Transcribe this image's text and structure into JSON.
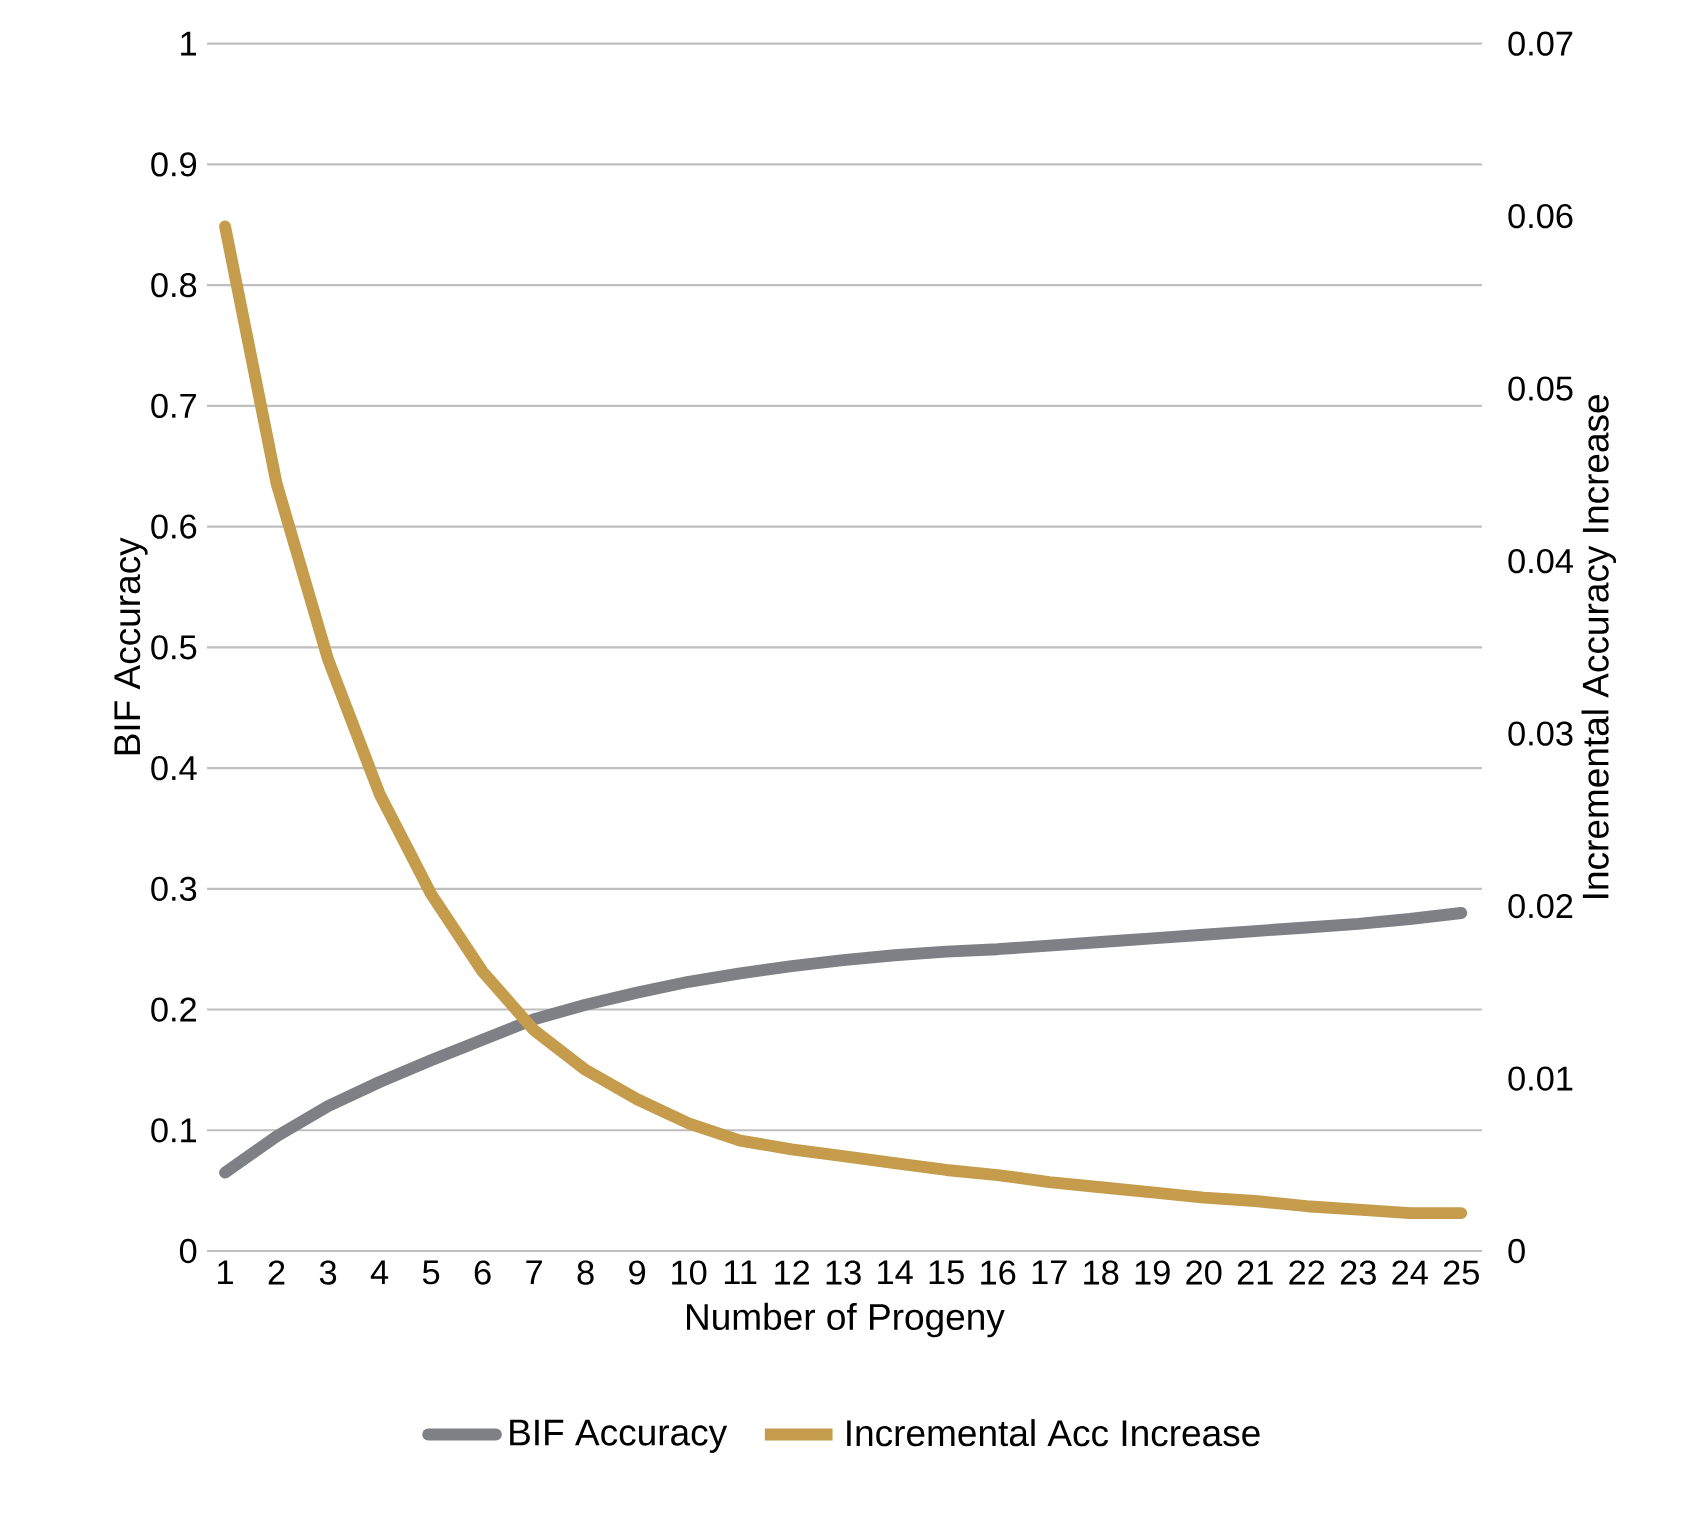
{
  "chart_data": {
    "type": "line",
    "xlabel": "Number of Progeny",
    "ylabel": "BIF Accuracy",
    "y2label": "Incremental Accuracy Increase",
    "categories": [
      "1",
      "2",
      "3",
      "4",
      "5",
      "6",
      "7",
      "8",
      "9",
      "10",
      "11",
      "12",
      "13",
      "14",
      "15",
      "16",
      "17",
      "18",
      "19",
      "20",
      "21",
      "22",
      "23",
      "24",
      "25"
    ],
    "series": [
      {
        "name": "BIF Accuracy",
        "color": "#7f8085",
        "values": [
          0.065,
          0.095,
          0.12,
          0.14,
          0.158,
          0.175,
          0.192,
          0.204,
          0.214,
          0.223,
          0.23,
          0.236,
          0.241,
          0.245,
          0.248,
          0.25,
          0.253,
          0.256,
          0.259,
          0.262,
          0.265,
          0.268,
          0.271,
          0.275,
          0.28
        ]
      },
      {
        "name": "Incremental Acc Increase",
        "color": "#c49c4c",
        "axis": "y2",
        "values": [
          0.0594,
          0.0445,
          0.0343,
          0.0265,
          0.0207,
          0.0162,
          0.0128,
          0.0105,
          0.0088,
          0.0074,
          0.0064,
          0.0059,
          0.0055,
          0.0051,
          0.0047,
          0.0044,
          0.004,
          0.0037,
          0.0034,
          0.0031,
          0.0029,
          0.0026,
          0.0024,
          0.0022,
          0.0022
        ]
      }
    ],
    "ylim": [
      0,
      1
    ],
    "yticks": [
      0,
      0.1,
      0.2,
      0.3,
      0.4,
      0.5,
      0.6,
      0.7,
      0.8,
      0.9,
      1
    ],
    "y2lim": [
      0,
      0.07
    ],
    "y2ticks": [
      0,
      0.01,
      0.02,
      0.03,
      0.04,
      0.05,
      0.06,
      0.07
    ],
    "grid": "y",
    "legend": "bottom",
    "marker": "none",
    "line_style": "solid"
  }
}
